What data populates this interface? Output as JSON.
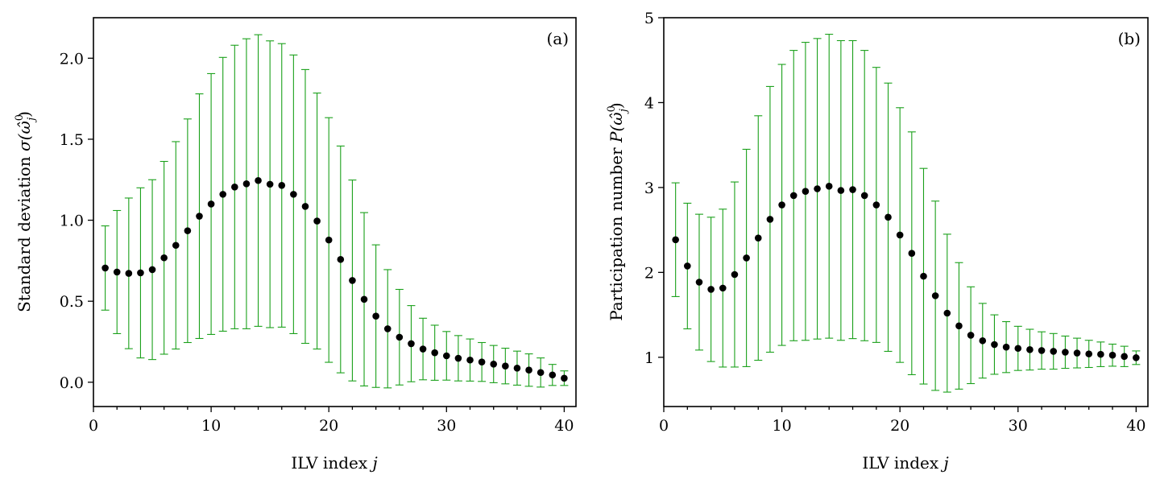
{
  "chart_data": [
    {
      "type": "scatter",
      "panel_label": "(a)",
      "xlabel": "ILV index",
      "xlabel_var": "j",
      "ylabel": "Standard deviation",
      "ylabel_math": "σ(ω̂",
      "ylabel_sup": "0",
      "ylabel_sub": "j",
      "ylabel_close": ")",
      "xlim": [
        0,
        41
      ],
      "ylim": [
        -0.15,
        2.25
      ],
      "xticks": [
        0,
        10,
        20,
        30,
        40
      ],
      "xtick_labels": [
        "0",
        "10",
        "20",
        "30",
        "40"
      ],
      "yticks": [
        0.0,
        0.5,
        1.0,
        1.5,
        2.0
      ],
      "ytick_labels": [
        "0.0",
        "0.5",
        "1.0",
        "1.5",
        "2.0"
      ],
      "marker_color": "#000000",
      "errorbar_color": "#1aa01a",
      "x": [
        1,
        2,
        3,
        4,
        5,
        6,
        7,
        8,
        9,
        10,
        11,
        12,
        13,
        14,
        15,
        16,
        17,
        18,
        19,
        20,
        21,
        22,
        23,
        24,
        25,
        26,
        27,
        28,
        29,
        30,
        31,
        32,
        33,
        34,
        35,
        36,
        37,
        38,
        39,
        40
      ],
      "values": [
        0.705,
        0.68,
        0.672,
        0.675,
        0.695,
        0.768,
        0.845,
        0.935,
        1.025,
        1.1,
        1.16,
        1.205,
        1.225,
        1.245,
        1.222,
        1.215,
        1.16,
        1.085,
        0.995,
        0.878,
        0.758,
        0.628,
        0.512,
        0.408,
        0.33,
        0.278,
        0.238,
        0.205,
        0.182,
        0.163,
        0.148,
        0.137,
        0.125,
        0.112,
        0.1,
        0.087,
        0.075,
        0.06,
        0.045,
        0.025
      ],
      "err": [
        0.26,
        0.38,
        0.465,
        0.525,
        0.555,
        0.595,
        0.64,
        0.69,
        0.755,
        0.805,
        0.845,
        0.875,
        0.895,
        0.9,
        0.885,
        0.875,
        0.86,
        0.845,
        0.79,
        0.755,
        0.7,
        0.62,
        0.535,
        0.44,
        0.365,
        0.295,
        0.235,
        0.19,
        0.17,
        0.15,
        0.14,
        0.13,
        0.12,
        0.115,
        0.11,
        0.105,
        0.1,
        0.09,
        0.065,
        0.045
      ]
    },
    {
      "type": "scatter",
      "panel_label": "(b)",
      "xlabel": "ILV index",
      "xlabel_var": "j",
      "ylabel": "Participation number",
      "ylabel_math": "P(ω̂",
      "ylabel_sup": "0",
      "ylabel_sub": "j",
      "ylabel_close": ")",
      "xlim": [
        0,
        41
      ],
      "ylim": [
        0.42,
        5.0
      ],
      "xticks": [
        0,
        10,
        20,
        30,
        40
      ],
      "xtick_labels": [
        "0",
        "10",
        "20",
        "30",
        "40"
      ],
      "yticks": [
        1,
        2,
        3,
        4,
        5
      ],
      "ytick_labels": [
        "1",
        "2",
        "3",
        "4",
        "5"
      ],
      "marker_color": "#000000",
      "errorbar_color": "#1aa01a",
      "x": [
        1,
        2,
        3,
        4,
        5,
        6,
        7,
        8,
        9,
        10,
        11,
        12,
        13,
        14,
        15,
        16,
        17,
        18,
        19,
        20,
        21,
        22,
        23,
        24,
        25,
        26,
        27,
        28,
        29,
        30,
        31,
        32,
        33,
        34,
        35,
        36,
        37,
        38,
        39,
        40
      ],
      "values": [
        2.385,
        2.075,
        1.885,
        1.8,
        1.815,
        1.975,
        2.17,
        2.405,
        2.625,
        2.795,
        2.905,
        2.955,
        2.985,
        3.015,
        2.965,
        2.975,
        2.905,
        2.795,
        2.65,
        2.44,
        2.225,
        1.955,
        1.725,
        1.52,
        1.37,
        1.26,
        1.195,
        1.15,
        1.12,
        1.105,
        1.09,
        1.08,
        1.07,
        1.06,
        1.05,
        1.04,
        1.035,
        1.025,
        1.01,
        0.995
      ],
      "err": [
        0.67,
        0.74,
        0.8,
        0.85,
        0.93,
        1.09,
        1.28,
        1.44,
        1.565,
        1.655,
        1.71,
        1.755,
        1.77,
        1.79,
        1.765,
        1.755,
        1.71,
        1.62,
        1.58,
        1.5,
        1.43,
        1.27,
        1.115,
        0.93,
        0.745,
        0.57,
        0.44,
        0.35,
        0.3,
        0.26,
        0.24,
        0.22,
        0.21,
        0.19,
        0.175,
        0.16,
        0.145,
        0.13,
        0.12,
        0.08
      ]
    }
  ]
}
